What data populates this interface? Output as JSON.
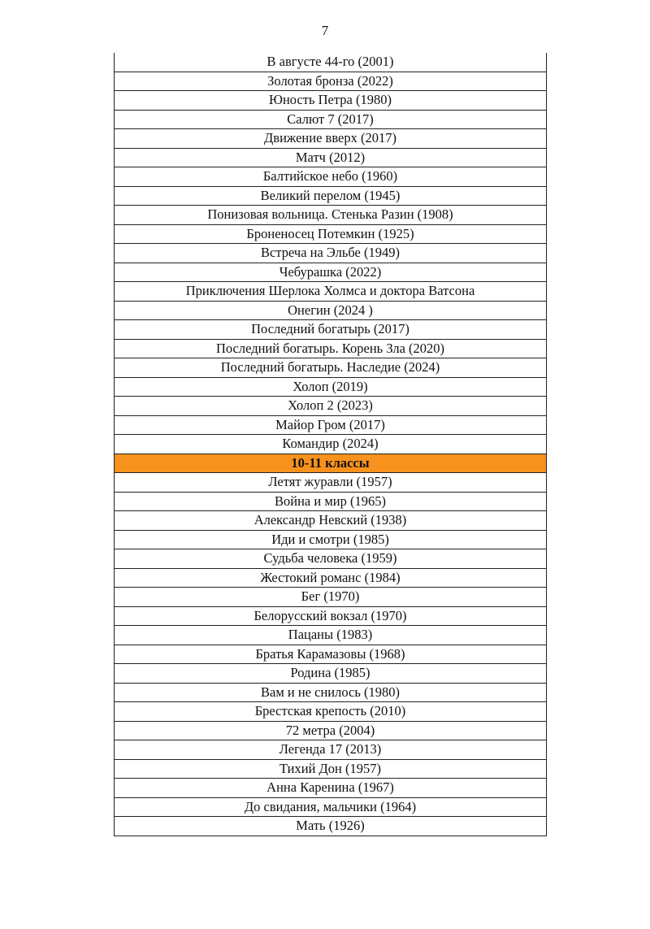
{
  "page_number": "7",
  "colors": {
    "section_header": "#f7921e"
  },
  "rows": [
    {
      "text": "В августе 44-го (2001)"
    },
    {
      "text": "Золотая бронза (2022)"
    },
    {
      "text": "Юность Петра (1980)"
    },
    {
      "text": "Салют 7 (2017)"
    },
    {
      "text": "Движение вверх (2017)"
    },
    {
      "text": "Матч (2012)"
    },
    {
      "text": "Балтийское небо (1960)"
    },
    {
      "text": "Великий перелом (1945)"
    },
    {
      "text": "Понизовая вольница. Стенька Разин (1908)"
    },
    {
      "text": "Броненосец Потемкин (1925)"
    },
    {
      "text": "Встреча на Эльбе (1949)"
    },
    {
      "text": "Чебурашка (2022)"
    },
    {
      "text": "Приключения Шерлока Холмса и доктора Ватсона"
    },
    {
      "text": "Онегин (2024 )"
    },
    {
      "text": "Последний богатырь (2017)"
    },
    {
      "text": "Последний богатырь. Корень Зла (2020)"
    },
    {
      "text": "Последний богатырь. Наследие (2024)"
    },
    {
      "text": "Холоп (2019)"
    },
    {
      "text": "Холоп 2 (2023)"
    },
    {
      "text": "Майор Гром (2017)"
    },
    {
      "text": "Командир (2024)"
    },
    {
      "text": "10-11 классы",
      "header": true
    },
    {
      "text": "Летят журавли (1957)"
    },
    {
      "text": "Война и мир (1965)"
    },
    {
      "text": "Александр Невский (1938)"
    },
    {
      "text": "Иди и смотри (1985)"
    },
    {
      "text": "Судьба человека (1959)"
    },
    {
      "text": "Жестокий романс (1984)"
    },
    {
      "text": "Бег (1970)"
    },
    {
      "text": "Белорусский вокзал (1970)"
    },
    {
      "text": "Пацаны (1983)"
    },
    {
      "text": "Братья Карамазовы (1968)"
    },
    {
      "text": "Родина (1985)"
    },
    {
      "text": "Вам и не снилось (1980)"
    },
    {
      "text": "Брестская крепость (2010)"
    },
    {
      "text": "72 метра (2004)"
    },
    {
      "text": "Легенда 17 (2013)"
    },
    {
      "text": "Тихий Дон (1957)"
    },
    {
      "text": "Анна Каренина (1967)"
    },
    {
      "text": "До свидания, мальчики (1964)"
    },
    {
      "text": "Мать (1926)"
    }
  ]
}
